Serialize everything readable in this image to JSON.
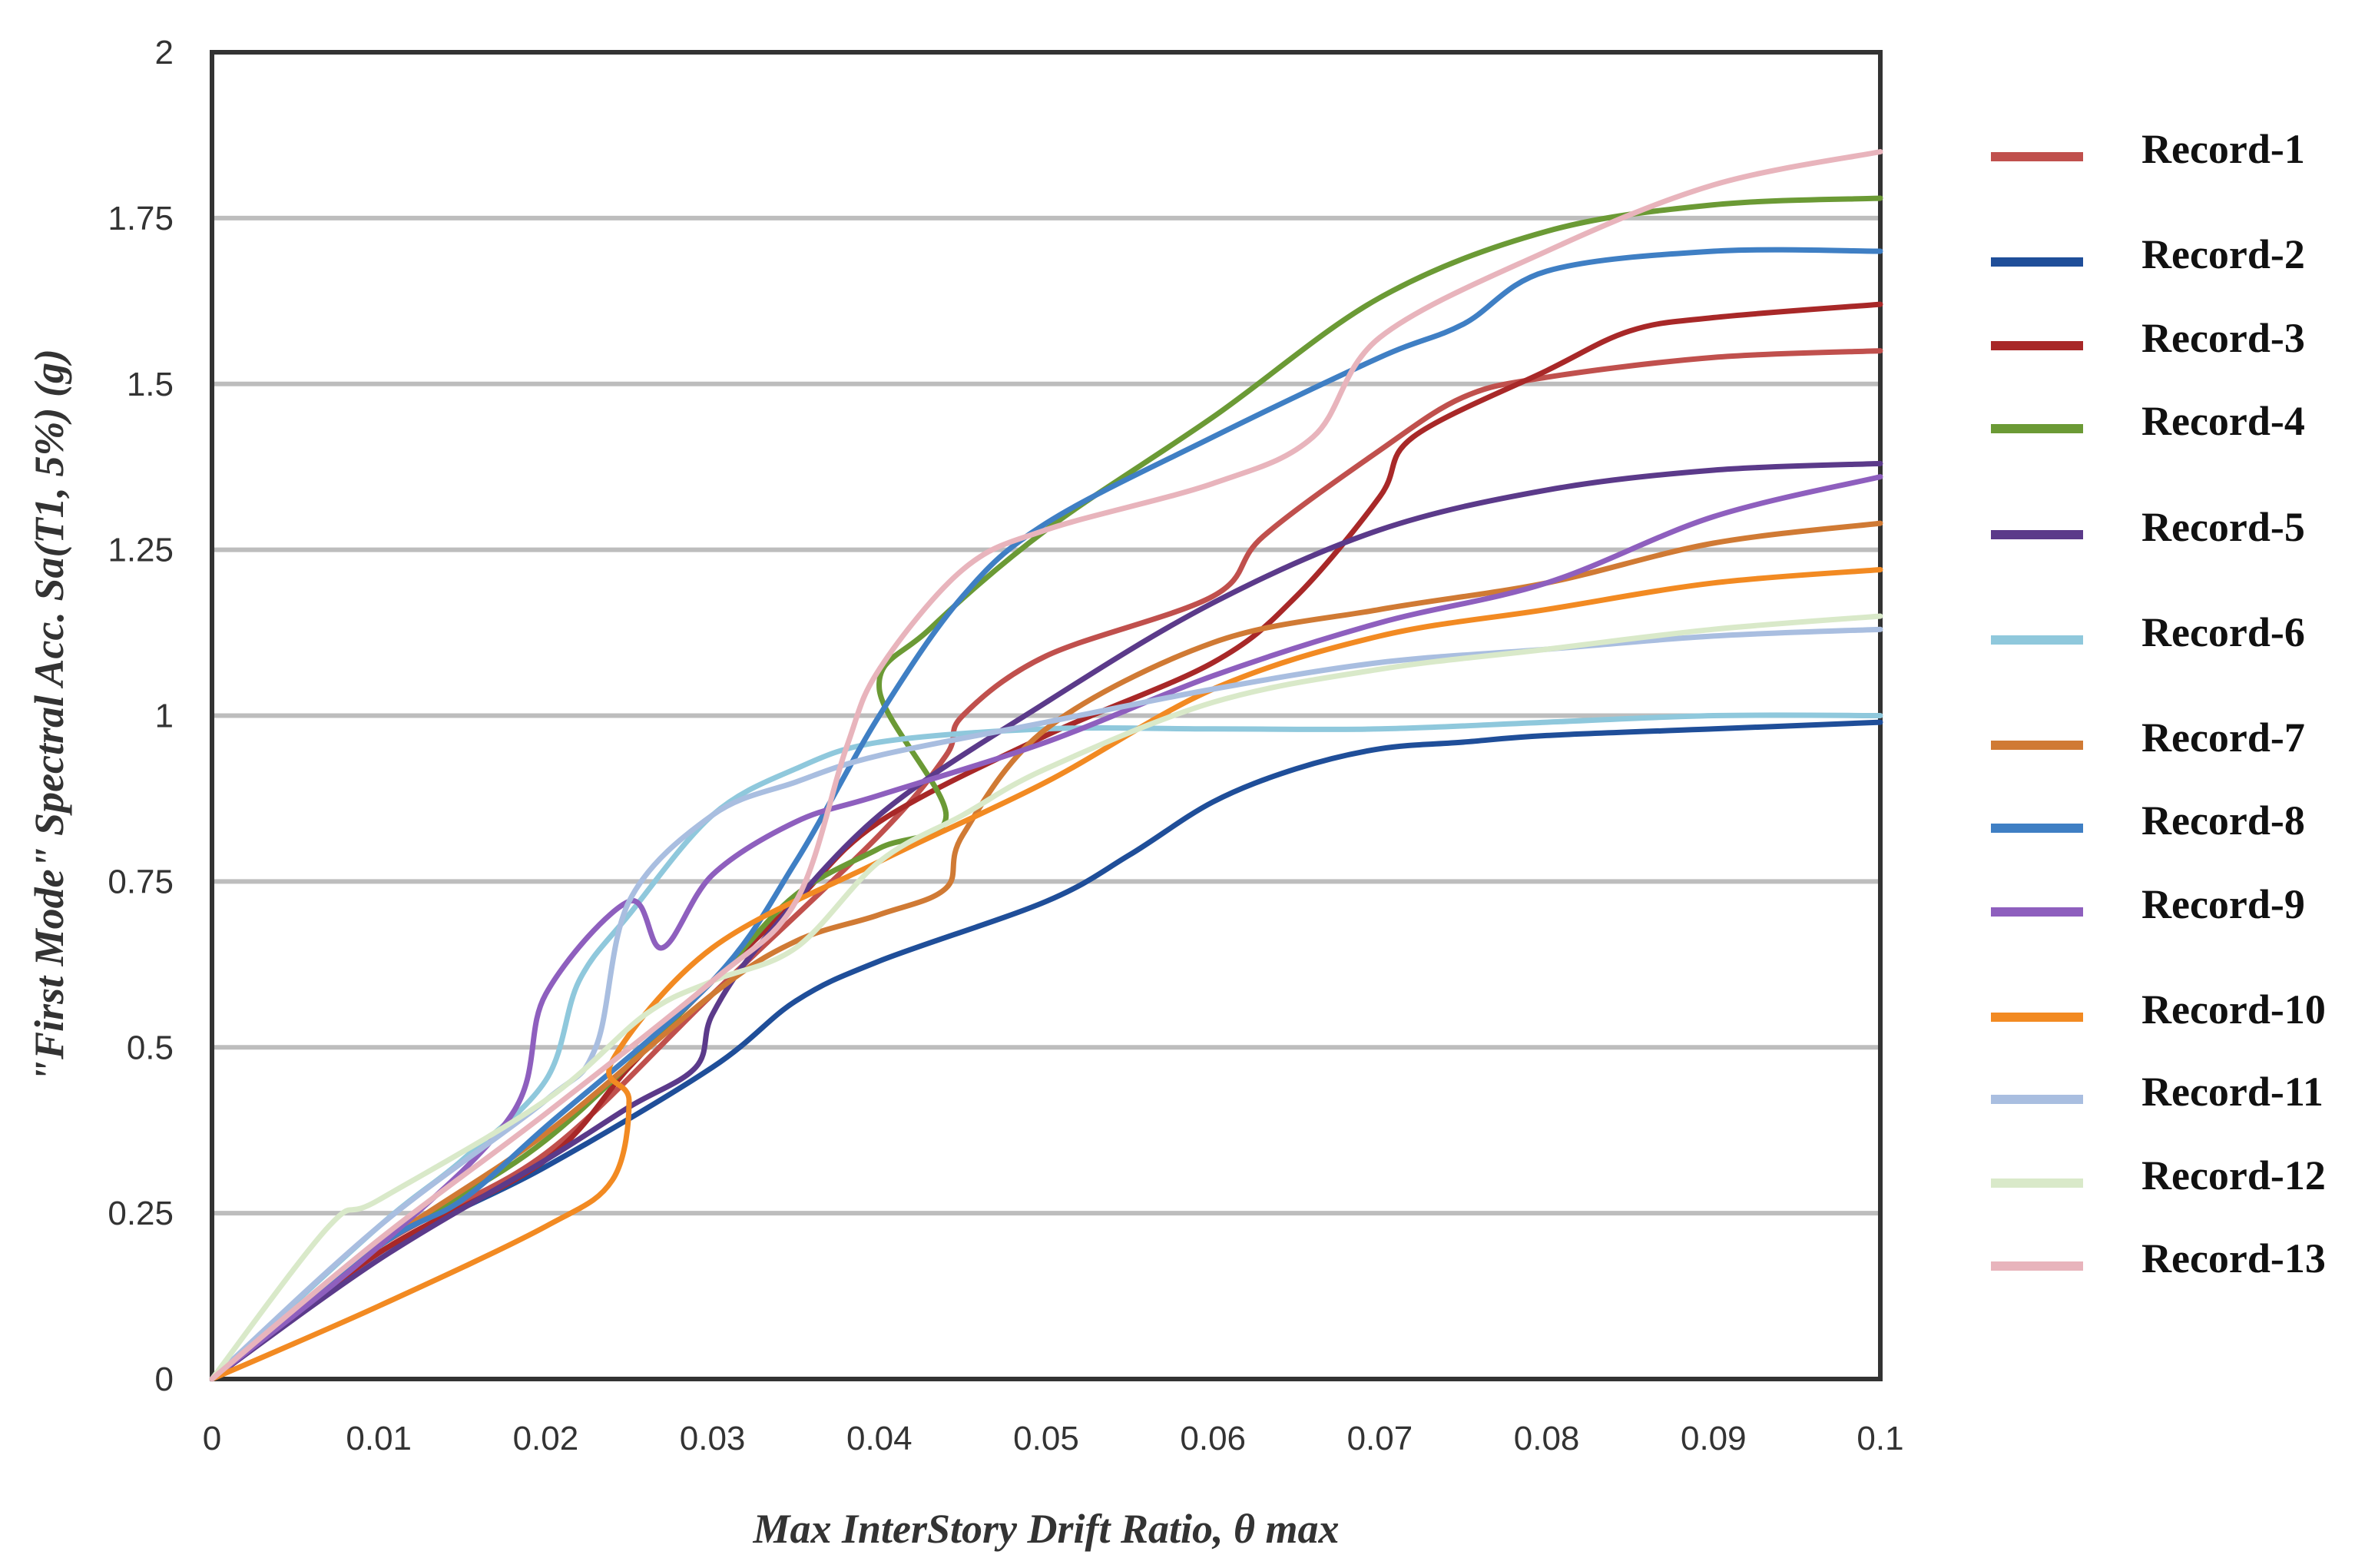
{
  "chart_data": {
    "type": "line",
    "title": "",
    "xlabel": "Max InterStory Drift Ratio, θ max",
    "ylabel": "\"First Mode\" Spectral Acc. Sa(T1, 5%) (g)",
    "xlim": [
      0,
      0.1
    ],
    "ylim": [
      0,
      2
    ],
    "x_ticks": [
      "0",
      "0.01",
      "0.02",
      "0.03",
      "0.04",
      "0.05",
      "0.06",
      "0.07",
      "0.08",
      "0.09",
      "0.1"
    ],
    "y_ticks": [
      "0",
      "0.25",
      "0.5",
      "0.75",
      "1",
      "1.25",
      "1.5",
      "1.75",
      "2"
    ],
    "grid": "horizontal",
    "legend_position": "right",
    "series": [
      {
        "name": "Record-1",
        "color": "#c0504d",
        "points": [
          [
            0,
            0
          ],
          [
            0.01,
            0.2
          ],
          [
            0.02,
            0.34
          ],
          [
            0.03,
            0.58
          ],
          [
            0.04,
            0.82
          ],
          [
            0.044,
            0.94
          ],
          [
            0.045,
            1.0
          ],
          [
            0.05,
            1.09
          ],
          [
            0.06,
            1.18
          ],
          [
            0.063,
            1.27
          ],
          [
            0.07,
            1.4
          ],
          [
            0.075,
            1.48
          ],
          [
            0.08,
            1.51
          ],
          [
            0.09,
            1.54
          ],
          [
            0.1,
            1.55
          ]
        ]
      },
      {
        "name": "Record-2",
        "color": "#1f4e99",
        "points": [
          [
            0,
            0
          ],
          [
            0.01,
            0.19
          ],
          [
            0.02,
            0.32
          ],
          [
            0.03,
            0.47
          ],
          [
            0.035,
            0.57
          ],
          [
            0.04,
            0.63
          ],
          [
            0.05,
            0.72
          ],
          [
            0.055,
            0.79
          ],
          [
            0.06,
            0.87
          ],
          [
            0.065,
            0.92
          ],
          [
            0.07,
            0.95
          ],
          [
            0.075,
            0.96
          ],
          [
            0.08,
            0.97
          ],
          [
            0.09,
            0.98
          ],
          [
            0.1,
            0.99
          ]
        ]
      },
      {
        "name": "Record-3",
        "color": "#a82828",
        "points": [
          [
            0,
            0
          ],
          [
            0.01,
            0.19
          ],
          [
            0.02,
            0.33
          ],
          [
            0.025,
            0.47
          ],
          [
            0.03,
            0.6
          ],
          [
            0.035,
            0.72
          ],
          [
            0.04,
            0.84
          ],
          [
            0.05,
            0.97
          ],
          [
            0.06,
            1.08
          ],
          [
            0.065,
            1.18
          ],
          [
            0.07,
            1.33
          ],
          [
            0.072,
            1.42
          ],
          [
            0.08,
            1.52
          ],
          [
            0.085,
            1.58
          ],
          [
            0.09,
            1.6
          ],
          [
            0.1,
            1.62
          ]
        ]
      },
      {
        "name": "Record-4",
        "color": "#6b9a35",
        "points": [
          [
            0,
            0
          ],
          [
            0.01,
            0.2
          ],
          [
            0.02,
            0.36
          ],
          [
            0.03,
            0.6
          ],
          [
            0.035,
            0.73
          ],
          [
            0.04,
            0.8
          ],
          [
            0.044,
            0.85
          ],
          [
            0.04,
            1.04
          ],
          [
            0.043,
            1.13
          ],
          [
            0.05,
            1.28
          ],
          [
            0.06,
            1.45
          ],
          [
            0.07,
            1.63
          ],
          [
            0.08,
            1.73
          ],
          [
            0.09,
            1.77
          ],
          [
            0.1,
            1.78
          ]
        ]
      },
      {
        "name": "Record-5",
        "color": "#5b3a8a",
        "points": [
          [
            0,
            0
          ],
          [
            0.01,
            0.18
          ],
          [
            0.02,
            0.33
          ],
          [
            0.025,
            0.41
          ],
          [
            0.029,
            0.47
          ],
          [
            0.03,
            0.55
          ],
          [
            0.033,
            0.66
          ],
          [
            0.04,
            0.85
          ],
          [
            0.05,
            1.02
          ],
          [
            0.06,
            1.17
          ],
          [
            0.07,
            1.28
          ],
          [
            0.08,
            1.34
          ],
          [
            0.09,
            1.37
          ],
          [
            0.1,
            1.38
          ]
        ]
      },
      {
        "name": "Record-6",
        "color": "#8fc8dc",
        "points": [
          [
            0,
            0
          ],
          [
            0.01,
            0.23
          ],
          [
            0.015,
            0.33
          ],
          [
            0.02,
            0.45
          ],
          [
            0.022,
            0.6
          ],
          [
            0.025,
            0.7
          ],
          [
            0.03,
            0.85
          ],
          [
            0.035,
            0.92
          ],
          [
            0.04,
            0.96
          ],
          [
            0.05,
            0.98
          ],
          [
            0.06,
            0.98
          ],
          [
            0.07,
            0.98
          ],
          [
            0.08,
            0.99
          ],
          [
            0.09,
            1.0
          ],
          [
            0.1,
            1.0
          ]
        ]
      },
      {
        "name": "Record-7",
        "color": "#d07a34",
        "points": [
          [
            0,
            0
          ],
          [
            0.01,
            0.2
          ],
          [
            0.02,
            0.37
          ],
          [
            0.03,
            0.58
          ],
          [
            0.035,
            0.66
          ],
          [
            0.04,
            0.7
          ],
          [
            0.044,
            0.74
          ],
          [
            0.045,
            0.82
          ],
          [
            0.05,
            0.98
          ],
          [
            0.06,
            1.11
          ],
          [
            0.07,
            1.16
          ],
          [
            0.08,
            1.2
          ],
          [
            0.09,
            1.26
          ],
          [
            0.1,
            1.29
          ]
        ]
      },
      {
        "name": "Record-8",
        "color": "#3f7fc4",
        "points": [
          [
            0,
            0
          ],
          [
            0.01,
            0.2
          ],
          [
            0.015,
            0.27
          ],
          [
            0.02,
            0.38
          ],
          [
            0.03,
            0.6
          ],
          [
            0.035,
            0.78
          ],
          [
            0.04,
            1.0
          ],
          [
            0.045,
            1.18
          ],
          [
            0.05,
            1.29
          ],
          [
            0.06,
            1.42
          ],
          [
            0.07,
            1.54
          ],
          [
            0.075,
            1.59
          ],
          [
            0.08,
            1.67
          ],
          [
            0.09,
            1.7
          ],
          [
            0.1,
            1.7
          ]
        ]
      },
      {
        "name": "Record-9",
        "color": "#8e5fbe",
        "points": [
          [
            0,
            0
          ],
          [
            0.01,
            0.2
          ],
          [
            0.018,
            0.4
          ],
          [
            0.02,
            0.58
          ],
          [
            0.025,
            0.72
          ],
          [
            0.027,
            0.65
          ],
          [
            0.03,
            0.76
          ],
          [
            0.035,
            0.84
          ],
          [
            0.04,
            0.88
          ],
          [
            0.05,
            0.96
          ],
          [
            0.06,
            1.06
          ],
          [
            0.07,
            1.14
          ],
          [
            0.08,
            1.2
          ],
          [
            0.09,
            1.3
          ],
          [
            0.1,
            1.36
          ]
        ]
      },
      {
        "name": "Record-10",
        "color": "#f28a22",
        "points": [
          [
            0,
            0
          ],
          [
            0.01,
            0.11
          ],
          [
            0.02,
            0.23
          ],
          [
            0.024,
            0.3
          ],
          [
            0.025,
            0.42
          ],
          [
            0.024,
            0.48
          ],
          [
            0.03,
            0.65
          ],
          [
            0.04,
            0.78
          ],
          [
            0.05,
            0.9
          ],
          [
            0.06,
            1.04
          ],
          [
            0.07,
            1.12
          ],
          [
            0.08,
            1.16
          ],
          [
            0.09,
            1.2
          ],
          [
            0.1,
            1.22
          ]
        ]
      },
      {
        "name": "Record-11",
        "color": "#a9bee0",
        "points": [
          [
            0,
            0
          ],
          [
            0.01,
            0.23
          ],
          [
            0.02,
            0.42
          ],
          [
            0.023,
            0.5
          ],
          [
            0.025,
            0.72
          ],
          [
            0.03,
            0.85
          ],
          [
            0.035,
            0.9
          ],
          [
            0.04,
            0.94
          ],
          [
            0.05,
            0.99
          ],
          [
            0.06,
            1.04
          ],
          [
            0.07,
            1.08
          ],
          [
            0.08,
            1.1
          ],
          [
            0.09,
            1.12
          ],
          [
            0.1,
            1.13
          ]
        ]
      },
      {
        "name": "Record-12",
        "color": "#d9e9c9",
        "points": [
          [
            0,
            0
          ],
          [
            0.007,
            0.23
          ],
          [
            0.01,
            0.27
          ],
          [
            0.02,
            0.42
          ],
          [
            0.026,
            0.55
          ],
          [
            0.03,
            0.6
          ],
          [
            0.035,
            0.65
          ],
          [
            0.04,
            0.78
          ],
          [
            0.045,
            0.85
          ],
          [
            0.05,
            0.92
          ],
          [
            0.06,
            1.02
          ],
          [
            0.07,
            1.07
          ],
          [
            0.08,
            1.1
          ],
          [
            0.09,
            1.13
          ],
          [
            0.1,
            1.15
          ]
        ]
      },
      {
        "name": "Record-13",
        "color": "#e8b4bc",
        "points": [
          [
            0,
            0
          ],
          [
            0.01,
            0.21
          ],
          [
            0.02,
            0.4
          ],
          [
            0.03,
            0.6
          ],
          [
            0.035,
            0.72
          ],
          [
            0.038,
            0.95
          ],
          [
            0.04,
            1.07
          ],
          [
            0.045,
            1.22
          ],
          [
            0.05,
            1.28
          ],
          [
            0.06,
            1.35
          ],
          [
            0.066,
            1.42
          ],
          [
            0.07,
            1.57
          ],
          [
            0.08,
            1.7
          ],
          [
            0.09,
            1.8
          ],
          [
            0.1,
            1.85
          ]
        ]
      }
    ]
  }
}
